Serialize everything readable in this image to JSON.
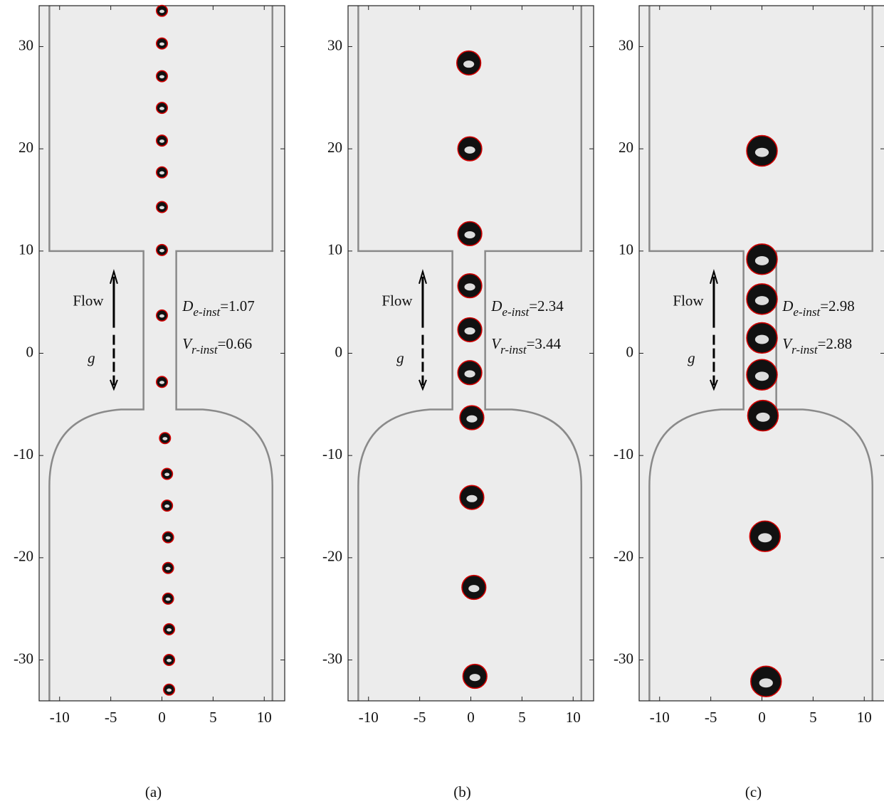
{
  "chart_data": [
    {
      "type": "scatter",
      "caption": "(a)",
      "flow_label": "Flow",
      "gravity_label": "g",
      "xlim": [
        -12,
        12
      ],
      "ylim": [
        -34,
        34
      ],
      "xticks": [
        -10,
        -5,
        0,
        5,
        10
      ],
      "yticks": [
        -30,
        -20,
        -10,
        0,
        10,
        20,
        30
      ],
      "series": [
        {
          "color": "#d00000",
          "x": [
            0,
            0,
            0,
            0,
            0,
            0,
            0,
            0,
            0,
            0,
            0.3,
            0.5,
            0.5,
            0.6,
            0.6,
            0.6,
            0.7,
            0.7,
            0.7
          ],
          "y": [
            33.5,
            30.3,
            27.1,
            24.0,
            20.8,
            17.7,
            14.3,
            10.1,
            3.7,
            -2.8,
            -8.3,
            -11.8,
            -14.9,
            -18.0,
            -21.0,
            -24.0,
            -27.0,
            -30.0,
            -32.9
          ]
        }
      ],
      "annotations": [
        {
          "symbol": "D",
          "subscript": "e-inst",
          "value": 1.07,
          "label": "=1.07"
        },
        {
          "symbol": "V",
          "subscript": "r-inst",
          "value": 0.66,
          "label": "=0.66"
        }
      ]
    },
    {
      "type": "scatter",
      "caption": "(b)",
      "flow_label": "Flow",
      "gravity_label": "g",
      "xlim": [
        -12,
        12
      ],
      "ylim": [
        -34,
        34
      ],
      "xticks": [
        -10,
        -5,
        0,
        5,
        10
      ],
      "yticks": [
        -30,
        -20,
        -10,
        0,
        10,
        20,
        30
      ],
      "series": [
        {
          "color": "#d00000",
          "x": [
            -0.2,
            -0.1,
            -0.1,
            -0.1,
            -0.1,
            -0.1,
            0.1,
            0.1,
            0.3,
            0.4
          ],
          "y": [
            28.4,
            20.0,
            11.7,
            6.6,
            2.3,
            -1.9,
            -6.3,
            -14.1,
            -22.9,
            -31.6
          ]
        }
      ],
      "annotations": [
        {
          "symbol": "D",
          "subscript": "e-inst",
          "value": 2.34,
          "label": "=2.34"
        },
        {
          "symbol": "V",
          "subscript": "r-inst",
          "value": 3.44,
          "label": "=3.44"
        }
      ]
    },
    {
      "type": "scatter",
      "caption": "(c)",
      "flow_label": "Flow",
      "gravity_label": "g",
      "xlim": [
        -12,
        12
      ],
      "ylim": [
        -34,
        34
      ],
      "xticks": [
        -10,
        -5,
        0,
        5,
        10
      ],
      "yticks": [
        -30,
        -20,
        -10,
        0,
        10,
        20,
        30
      ],
      "series": [
        {
          "color": "#d00000",
          "x": [
            0,
            0,
            0,
            0,
            0,
            0.1,
            0.3,
            0.4
          ],
          "y": [
            19.8,
            9.2,
            5.3,
            1.5,
            -2.1,
            -6.1,
            -17.9,
            -32.1
          ]
        }
      ],
      "annotations": [
        {
          "symbol": "D",
          "subscript": "e-inst",
          "value": 2.98,
          "label": "=2.98"
        },
        {
          "symbol": "V",
          "subscript": "r-inst",
          "value": 2.88,
          "label": "=2.88"
        }
      ]
    }
  ]
}
